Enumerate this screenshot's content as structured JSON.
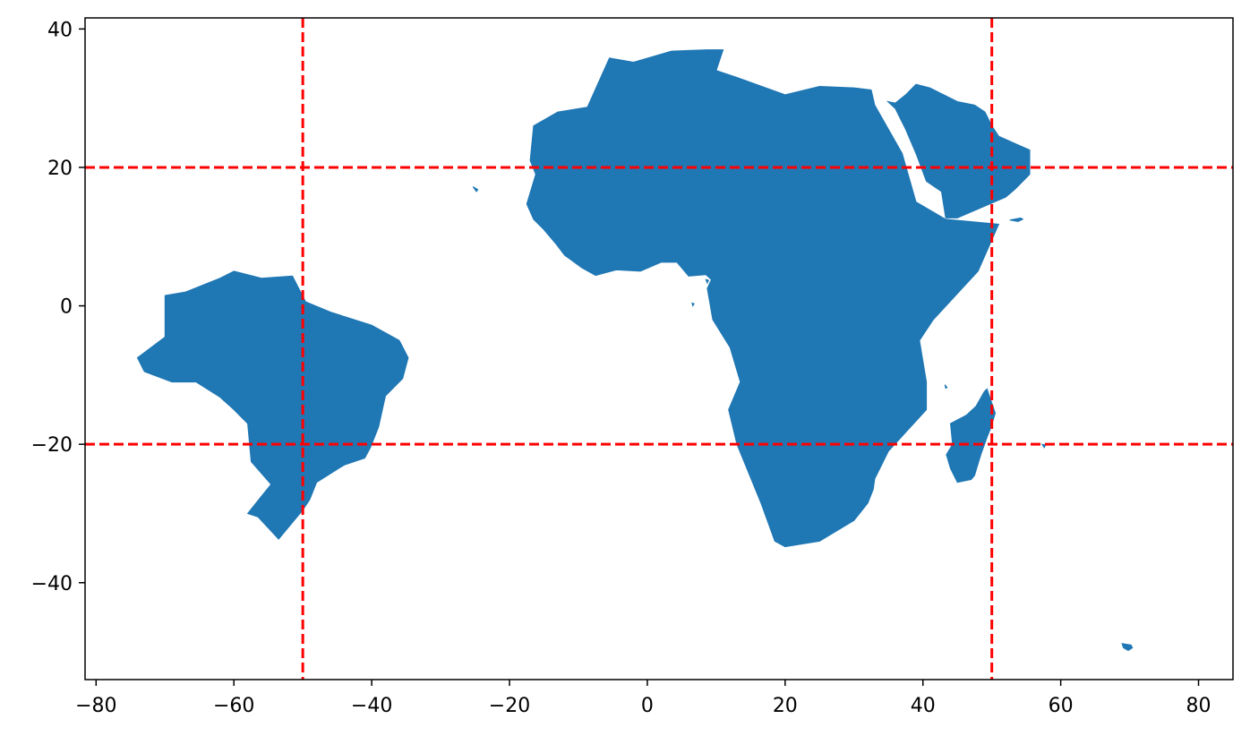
{
  "chart_data": {
    "type": "map",
    "title": "",
    "xlabel": "",
    "ylabel": "",
    "xlim": [
      -81.6,
      85
    ],
    "ylim": [
      -54,
      41.6
    ],
    "x_ticks": [
      -80,
      -60,
      -40,
      -20,
      0,
      20,
      40,
      60,
      80
    ],
    "y_ticks": [
      40,
      20,
      0,
      -20,
      -40
    ],
    "x_tick_labels": [
      "−80",
      "−60",
      "−40",
      "−20",
      "0",
      "20",
      "40",
      "60",
      "80"
    ],
    "y_tick_labels": [
      "40",
      "20",
      "0",
      "−20",
      "−40"
    ],
    "grid": false,
    "fill_color": "#1f77b4",
    "reference_line_color": "#ff0000",
    "reference_lines": [
      {
        "orientation": "horizontal",
        "value": 20,
        "style": "dashed"
      },
      {
        "orientation": "horizontal",
        "value": -20,
        "style": "dashed"
      },
      {
        "orientation": "vertical",
        "value": -50,
        "style": "dashed"
      },
      {
        "orientation": "vertical",
        "value": 50,
        "style": "dashed"
      }
    ],
    "regions": [
      {
        "name": "brazil",
        "outline": [
          [
            -60,
            5
          ],
          [
            -56,
            4
          ],
          [
            -51.5,
            4.3
          ],
          [
            -49.6,
            0.6
          ],
          [
            -46,
            -0.9
          ],
          [
            -40,
            -2.8
          ],
          [
            -36,
            -5
          ],
          [
            -34.7,
            -7.5
          ],
          [
            -35.5,
            -10.5
          ],
          [
            -38,
            -13
          ],
          [
            -39,
            -17.5
          ],
          [
            -40.2,
            -20.5
          ],
          [
            -41,
            -22
          ],
          [
            -44,
            -23
          ],
          [
            -48,
            -25.5
          ],
          [
            -49,
            -28
          ],
          [
            -50,
            -29.5
          ],
          [
            -53.5,
            -33.7
          ],
          [
            -56.5,
            -30.5
          ],
          [
            -58,
            -30
          ],
          [
            -56,
            -27.5
          ],
          [
            -54.6,
            -25.8
          ],
          [
            -57.5,
            -22.5
          ],
          [
            -58,
            -17
          ],
          [
            -60,
            -15
          ],
          [
            -62,
            -13.2
          ],
          [
            -65.5,
            -11
          ],
          [
            -69,
            -11
          ],
          [
            -73,
            -9.5
          ],
          [
            -74,
            -7.5
          ],
          [
            -70,
            -4.5
          ],
          [
            -70,
            0
          ],
          [
            -70,
            1.5
          ],
          [
            -67,
            2
          ],
          [
            -62,
            4
          ],
          [
            -60,
            5
          ]
        ]
      },
      {
        "name": "africa",
        "outline": [
          [
            -17,
            21
          ],
          [
            -16.5,
            26
          ],
          [
            -13,
            28
          ],
          [
            -8.7,
            28.7
          ],
          [
            -5.5,
            35.8
          ],
          [
            -2,
            35.2
          ],
          [
            3.5,
            36.8
          ],
          [
            8.6,
            37
          ],
          [
            11,
            37
          ],
          [
            10,
            34
          ],
          [
            13,
            33
          ],
          [
            20,
            30.5
          ],
          [
            25,
            31.7
          ],
          [
            30,
            31.5
          ],
          [
            32.5,
            31.2
          ],
          [
            33,
            29
          ],
          [
            37,
            22
          ],
          [
            39,
            15
          ],
          [
            43.3,
            12.5
          ],
          [
            51,
            11.8
          ],
          [
            48,
            5
          ],
          [
            41.5,
            -2
          ],
          [
            39.5,
            -5
          ],
          [
            40.5,
            -11
          ],
          [
            40.5,
            -15
          ],
          [
            35,
            -21
          ],
          [
            33,
            -25
          ],
          [
            32.8,
            -26.5
          ],
          [
            32,
            -28.5
          ],
          [
            30,
            -31
          ],
          [
            25,
            -34
          ],
          [
            20,
            -34.8
          ],
          [
            18.5,
            -34
          ],
          [
            16.5,
            -28.5
          ],
          [
            13,
            -20
          ],
          [
            11.8,
            -15
          ],
          [
            13.5,
            -11
          ],
          [
            12,
            -6
          ],
          [
            9.5,
            -2
          ],
          [
            8.7,
            2.5
          ],
          [
            9.3,
            3.8
          ],
          [
            8.5,
            4.5
          ],
          [
            6,
            4.3
          ],
          [
            4.3,
            6.3
          ],
          [
            2,
            6.3
          ],
          [
            -1,
            5
          ],
          [
            -4.5,
            5.2
          ],
          [
            -7.5,
            4.4
          ],
          [
            -9.5,
            5.5
          ],
          [
            -12,
            7.3
          ],
          [
            -13.3,
            9
          ],
          [
            -15,
            11
          ],
          [
            -16.5,
            12.5
          ],
          [
            -17.5,
            14.7
          ],
          [
            -16.2,
            19
          ],
          [
            -17,
            21
          ]
        ]
      },
      {
        "name": "arabian-peninsula",
        "outline": [
          [
            34.9,
            29.5
          ],
          [
            36,
            28.5
          ],
          [
            37.5,
            25.5
          ],
          [
            39,
            22
          ],
          [
            40.5,
            18
          ],
          [
            42.7,
            16.5
          ],
          [
            43.3,
            12.7
          ],
          [
            45,
            12.7
          ],
          [
            48,
            14
          ],
          [
            52,
            15.7
          ],
          [
            53.3,
            16.8
          ],
          [
            55.5,
            19
          ],
          [
            55.5,
            22.5
          ],
          [
            51,
            24.5
          ],
          [
            50,
            26
          ],
          [
            49,
            28
          ],
          [
            47.5,
            29
          ],
          [
            45,
            29.5
          ],
          [
            41,
            31.5
          ],
          [
            39,
            32
          ],
          [
            37.5,
            30.5
          ],
          [
            36,
            29.3
          ],
          [
            34.9,
            29.5
          ]
        ]
      },
      {
        "name": "madagascar",
        "outline": [
          [
            49.3,
            -12
          ],
          [
            50.5,
            -15.5
          ],
          [
            49.9,
            -17.5
          ],
          [
            49.3,
            -19
          ],
          [
            48.4,
            -21.5
          ],
          [
            47.5,
            -24.5
          ],
          [
            47,
            -25.1
          ],
          [
            45,
            -25.5
          ],
          [
            44,
            -23.5
          ],
          [
            43.4,
            -21.5
          ],
          [
            44.3,
            -20
          ],
          [
            44,
            -17
          ],
          [
            46.3,
            -15.8
          ],
          [
            47.7,
            -14.5
          ],
          [
            48.9,
            -12.4
          ],
          [
            49.3,
            -12
          ]
        ]
      },
      {
        "name": "socotra",
        "outline": [
          [
            52.6,
            12.4
          ],
          [
            54.2,
            12.7
          ],
          [
            54.5,
            12.5
          ],
          [
            53.8,
            12.2
          ],
          [
            52.6,
            12.4
          ]
        ]
      },
      {
        "name": "kerguelen",
        "outline": [
          [
            68.9,
            -48.8
          ],
          [
            70.2,
            -49
          ],
          [
            70.4,
            -49.4
          ],
          [
            69.8,
            -49.8
          ],
          [
            69.1,
            -49.4
          ],
          [
            68.9,
            -48.8
          ]
        ]
      },
      {
        "name": "cape-verde",
        "outline": [
          [
            -25.3,
            17.2
          ],
          [
            -24.6,
            16.8
          ],
          [
            -24.8,
            16.5
          ],
          [
            -25.3,
            17.2
          ]
        ]
      },
      {
        "name": "bioko",
        "outline": [
          [
            8.5,
            3.8
          ],
          [
            8.9,
            3.7
          ],
          [
            8.7,
            3.3
          ],
          [
            8.5,
            3.8
          ]
        ]
      },
      {
        "name": "sao-tome",
        "outline": [
          [
            6.5,
            0.4
          ],
          [
            6.8,
            0.3
          ],
          [
            6.6,
            0.0
          ],
          [
            6.5,
            0.4
          ]
        ]
      },
      {
        "name": "comoros",
        "outline": [
          [
            43.2,
            -11.4
          ],
          [
            43.5,
            -11.8
          ],
          [
            43.3,
            -11.9
          ],
          [
            43.2,
            -11.4
          ]
        ]
      },
      {
        "name": "mauritius",
        "outline": [
          [
            57.3,
            -20.0
          ],
          [
            57.8,
            -20.1
          ],
          [
            57.6,
            -20.5
          ],
          [
            57.3,
            -20.0
          ]
        ]
      }
    ]
  }
}
